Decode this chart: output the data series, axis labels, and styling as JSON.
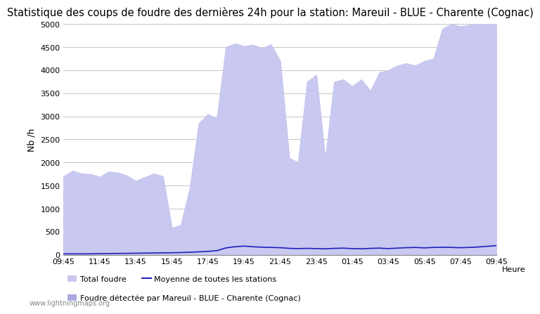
{
  "title": "Statistique des coups de foudre des dernières 24h pour la station: Mareuil - BLUE - Charente (Cognac)",
  "ylabel": "Nb /h",
  "xlabel": "Heure",
  "watermark": "www.lightningmaps.org",
  "ylim": [
    0,
    5000
  ],
  "yticks": [
    0,
    500,
    1000,
    1500,
    2000,
    2500,
    3000,
    3500,
    4000,
    4500,
    5000
  ],
  "xtick_labels": [
    "09:45",
    "11:45",
    "13:45",
    "15:45",
    "17:45",
    "19:45",
    "21:45",
    "23:45",
    "01:45",
    "03:45",
    "05:45",
    "07:45",
    "09:45"
  ],
  "fill_color": "#c8c8f0",
  "line_color": "#2020bb",
  "line_width": 1.2,
  "bg_color": "#ffffff",
  "grid_color": "#bbbbbb",
  "title_fontsize": 10.5,
  "legend_labels": [
    "Total foudre",
    "Moyenne de toutes les stations",
    "Foudre détectée par Mareuil - BLUE - Charente (Cognac)"
  ],
  "total_foudre": [
    1700,
    1820,
    1760,
    1750,
    1690,
    1800,
    1780,
    1720,
    1600,
    1680,
    1760,
    1700,
    580,
    650,
    1450,
    2850,
    3050,
    2950,
    4500,
    4580,
    4520,
    4550,
    4480,
    4560,
    4200,
    2100,
    2000,
    3750,
    3900,
    2050,
    3750,
    3800,
    3650,
    3800,
    3550,
    3950,
    4000,
    4100,
    4150,
    4100,
    4200,
    4250,
    4900,
    5000,
    4950,
    4980,
    5020,
    5060,
    4980
  ],
  "detected": [
    1680,
    1800,
    1740,
    1730,
    1670,
    1780,
    1760,
    1700,
    1580,
    1660,
    1740,
    1680,
    560,
    630,
    1430,
    2830,
    3030,
    2930,
    4480,
    4560,
    4500,
    4530,
    4460,
    4540,
    4180,
    2080,
    1980,
    3730,
    3880,
    2030,
    3730,
    3780,
    3630,
    3780,
    3530,
    3930,
    3980,
    4080,
    4130,
    4080,
    4180,
    4230,
    4880,
    4980,
    4930,
    4960,
    5000,
    5040,
    4960
  ],
  "moyenne": [
    20,
    22,
    20,
    22,
    25,
    28,
    30,
    32,
    35,
    38,
    40,
    42,
    45,
    50,
    55,
    65,
    75,
    90,
    150,
    175,
    190,
    175,
    165,
    160,
    155,
    140,
    135,
    140,
    135,
    130,
    140,
    145,
    135,
    130,
    140,
    145,
    135,
    145,
    155,
    160,
    150,
    160,
    165,
    160,
    155,
    160,
    170,
    185,
    200
  ]
}
